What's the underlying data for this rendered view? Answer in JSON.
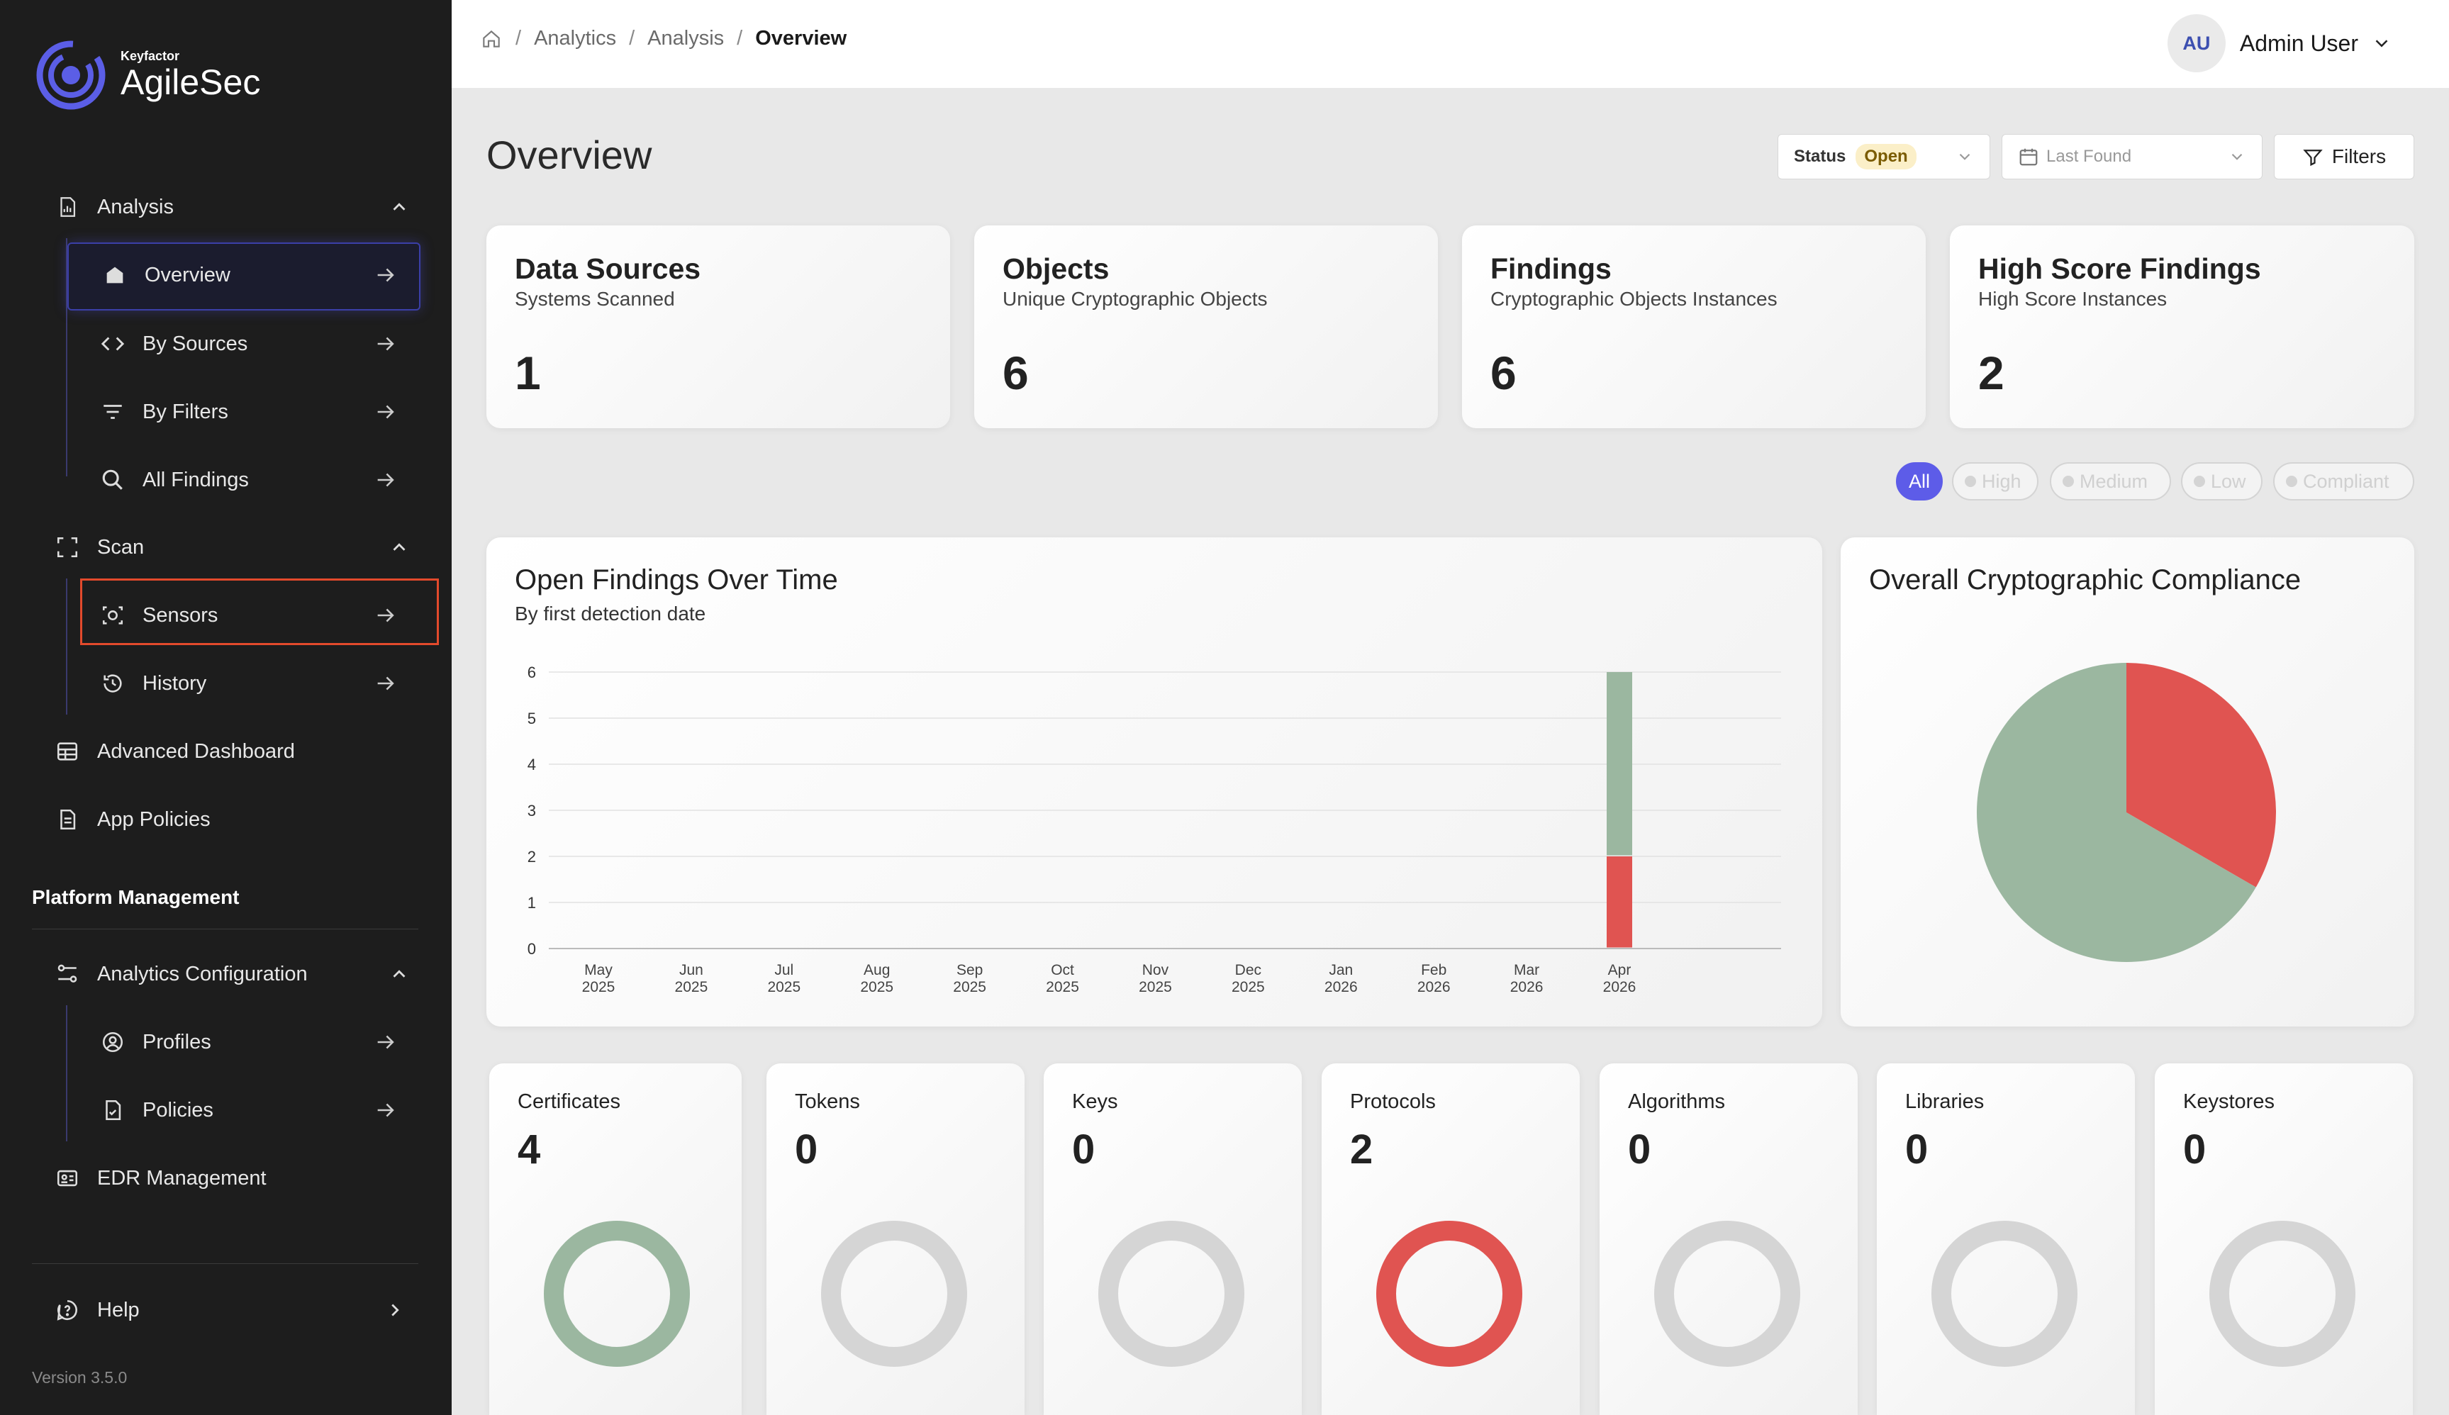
{
  "app": {
    "brand_small": "Keyfactor",
    "brand_name": "AgileSec",
    "version": "Version 3.5.0"
  },
  "sidebar": {
    "analysis": {
      "label": "Analysis"
    },
    "analysis_items": [
      {
        "label": "Overview"
      },
      {
        "label": "By Sources"
      },
      {
        "label": "By Filters"
      },
      {
        "label": "All Findings"
      }
    ],
    "scan": {
      "label": "Scan"
    },
    "scan_items": [
      {
        "label": "Sensors"
      },
      {
        "label": "History"
      }
    ],
    "advanced_dashboard": "Advanced Dashboard",
    "app_policies": "App Policies",
    "platform_title": "Platform Management",
    "analytics_config": "Analytics Configuration",
    "config_items": [
      {
        "label": "Profiles"
      },
      {
        "label": "Policies"
      }
    ],
    "edr": "EDR Management",
    "help": "Help"
  },
  "header": {
    "breadcrumbs": [
      "Analytics",
      "Analysis",
      "Overview"
    ],
    "user_initials": "AU",
    "user_name": "Admin User"
  },
  "page": {
    "title": "Overview",
    "status_label": "Status",
    "status_value": "Open",
    "date_placeholder": "Last Found",
    "filters_label": "Filters"
  },
  "stats": [
    {
      "title": "Data Sources",
      "subtitle": "Systems Scanned",
      "value": "1"
    },
    {
      "title": "Objects",
      "subtitle": "Unique Cryptographic Objects",
      "value": "6"
    },
    {
      "title": "Findings",
      "subtitle": "Cryptographic Objects Instances",
      "value": "6"
    },
    {
      "title": "High Score Findings",
      "subtitle": "High Score Instances",
      "value": "2"
    }
  ],
  "severity_chips": [
    "All",
    "High",
    "Medium",
    "Low",
    "Compliant"
  ],
  "colors": {
    "green": "#9bb7a0",
    "red": "#e05451",
    "gray": "#d5d5d5",
    "accent": "#5d5ce8"
  },
  "chart_data": [
    {
      "type": "bar",
      "title": "Open Findings Over Time",
      "subtitle": "By first detection date",
      "categories": [
        [
          "May",
          "2025"
        ],
        [
          "Jun",
          "2025"
        ],
        [
          "Jul",
          "2025"
        ],
        [
          "Aug",
          "2025"
        ],
        [
          "Sep",
          "2025"
        ],
        [
          "Oct",
          "2025"
        ],
        [
          "Nov",
          "2025"
        ],
        [
          "Dec",
          "2025"
        ],
        [
          "Jan",
          "2026"
        ],
        [
          "Feb",
          "2026"
        ],
        [
          "Mar",
          "2026"
        ],
        [
          "Apr",
          "2026"
        ]
      ],
      "series": [
        {
          "color": "#e05451",
          "values": [
            0,
            0,
            0,
            0,
            0,
            0,
            0,
            0,
            0,
            0,
            0,
            2
          ]
        },
        {
          "color": "#9bb7a0",
          "values": [
            0,
            0,
            0,
            0,
            0,
            0,
            0,
            0,
            0,
            0,
            0,
            4
          ]
        }
      ],
      "ylim": [
        0,
        6
      ],
      "yticks": [
        "0",
        "1",
        "2",
        "3",
        "4",
        "5",
        "6"
      ],
      "stacked": true,
      "grid": true
    },
    {
      "type": "pie",
      "title": "Overall Cryptographic Compliance",
      "slices": [
        {
          "value": 2,
          "color": "#e05451"
        },
        {
          "value": 4,
          "color": "#9bb7a0"
        }
      ]
    }
  ],
  "categories": [
    {
      "title": "Certificates",
      "value": "4",
      "ring_color": "#9bb7a0"
    },
    {
      "title": "Tokens",
      "value": "0",
      "ring_color": "#d5d5d5"
    },
    {
      "title": "Keys",
      "value": "0",
      "ring_color": "#d5d5d5"
    },
    {
      "title": "Protocols",
      "value": "2",
      "ring_color": "#e05451"
    },
    {
      "title": "Algorithms",
      "value": "0",
      "ring_color": "#d5d5d5"
    },
    {
      "title": "Libraries",
      "value": "0",
      "ring_color": "#d5d5d5"
    },
    {
      "title": "Keystores",
      "value": "0",
      "ring_color": "#d5d5d5"
    }
  ]
}
